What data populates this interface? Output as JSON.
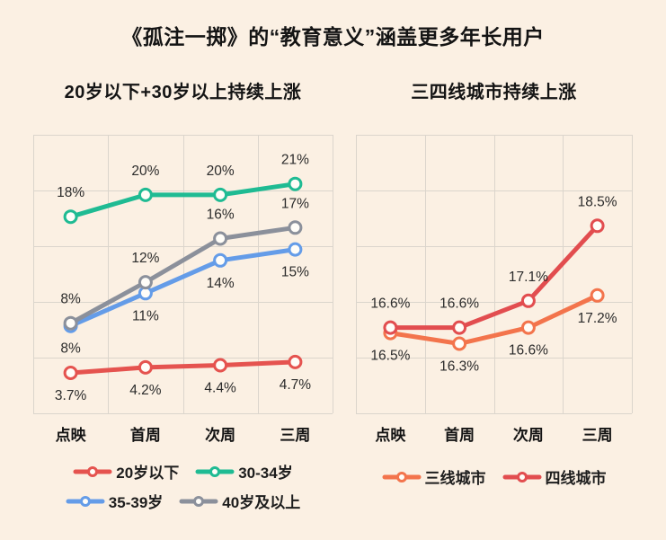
{
  "page": {
    "title": "《孤注一掷》的“教育意义”涵盖更多年长用户",
    "background_color": "#fbf0e3",
    "grid_color": "#dbd5cc",
    "marker_fill": "#fffdf8"
  },
  "chart_data": [
    {
      "type": "line",
      "title": "20岁以下+30岁以上持续上涨",
      "categories": [
        "点映",
        "首周",
        "次周",
        "三周"
      ],
      "series": [
        {
          "name": "20岁以下",
          "color": "#e5534f",
          "values": [
            3.7,
            4.2,
            4.4,
            4.7
          ],
          "labels": [
            "3.7%",
            "4.2%",
            "4.4%",
            "4.7%"
          ],
          "label_position": "below"
        },
        {
          "name": "30-34岁",
          "color": "#1fbb93",
          "values": [
            18,
            20,
            20,
            21
          ],
          "labels": [
            "18%",
            "20%",
            "20%",
            "21%"
          ],
          "label_position": "above"
        },
        {
          "name": "35-39岁",
          "color": "#649ce8",
          "values": [
            8,
            11,
            14,
            15
          ],
          "labels": [
            "8%",
            "11%",
            "14%",
            "15%"
          ],
          "label_position": "below"
        },
        {
          "name": "40岁及以上",
          "color": "#8b909b",
          "values": [
            8,
            12,
            16,
            17
          ],
          "labels": [
            "8%",
            "12%",
            "16%",
            "17%"
          ],
          "label_position": "above"
        }
      ],
      "ylim": [
        0,
        25.5
      ],
      "grid": true,
      "legend_position": "bottom",
      "legend_rows": [
        [
          "20岁以下",
          "30-34岁"
        ],
        [
          "35-39岁",
          "40岁及以上"
        ]
      ]
    },
    {
      "type": "line",
      "title": "三四线城市持续上涨",
      "categories": [
        "点映",
        "首周",
        "次周",
        "三周"
      ],
      "series": [
        {
          "name": "三线城市",
          "color": "#f3744c",
          "values": [
            16.5,
            16.3,
            16.6,
            17.2
          ],
          "labels": [
            "16.5%",
            "16.3%",
            "16.6%",
            "17.2%"
          ],
          "label_position": "below"
        },
        {
          "name": "四线城市",
          "color": "#e24d4f",
          "values": [
            16.6,
            16.6,
            17.1,
            18.5
          ],
          "labels": [
            "16.6%",
            "16.6%",
            "17.1%",
            "18.5%"
          ],
          "label_position": "above"
        }
      ],
      "ylim": [
        15,
        20.2
      ],
      "grid": true,
      "legend_position": "bottom",
      "legend_rows": [
        [
          "三线城市",
          "四线城市"
        ]
      ]
    }
  ]
}
